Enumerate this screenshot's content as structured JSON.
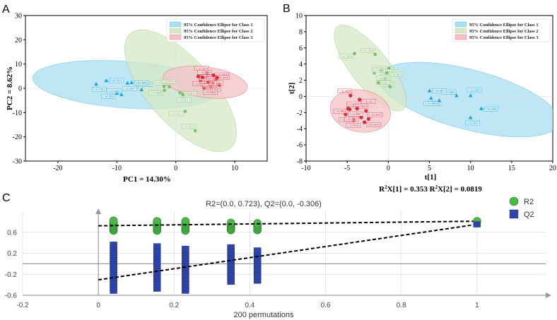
{
  "colors": {
    "class1": "#1aa3d6",
    "class1_fill": "#a8def2",
    "class2": "#7dbb67",
    "class2_fill": "#d6e8c6",
    "class3": "#d92a3a",
    "class3_fill": "#f6c2c7",
    "r2": "#4cb648",
    "q2": "#2f45a8"
  },
  "chart_data": [
    {
      "type": "scatter",
      "panel": "A",
      "xlabel": "PC1 = 14.30%",
      "ylabel": "PC2 = 8.62%",
      "xlim": [
        -25.5,
        15.5
      ],
      "ylim": [
        -30,
        30
      ],
      "xticks": [
        -20,
        -10,
        0,
        10
      ],
      "yticks": [
        -30,
        -20,
        -10,
        0,
        10,
        20,
        30
      ],
      "legend": [
        "95% Confidence Ellipse for Class 1",
        "95% Confidence Ellipse for Class 2",
        "95% Confidence Ellipse for Class 3"
      ],
      "ellipses": [
        {
          "cls": 1,
          "cx": -8.5,
          "cy": 1.5,
          "rx": 16,
          "ry": 9,
          "angle": -10
        },
        {
          "cls": 2,
          "cx": 0.8,
          "cy": -1,
          "rx": 25,
          "ry": 5.8,
          "angle": -70
        },
        {
          "cls": 3,
          "cx": 5,
          "cy": 2.5,
          "rx": 7.5,
          "ry": 5.2,
          "angle": -18
        }
      ],
      "points": [
        {
          "cls": 1,
          "x": -11.8,
          "y": 3.2,
          "label": "CACH01"
        },
        {
          "cls": 1,
          "x": -13.5,
          "y": 1.8,
          "label": "CACH02"
        },
        {
          "cls": 1,
          "x": -10,
          "y": -2,
          "label": "CACH03"
        },
        {
          "cls": 1,
          "x": -9.2,
          "y": -2.6,
          "label": "CACH04"
        },
        {
          "cls": 1,
          "x": -5.8,
          "y": -0.5,
          "label": "CACH05"
        },
        {
          "cls": 1,
          "x": -7.5,
          "y": 2.4,
          "label": "CACH06"
        },
        {
          "cls": 1,
          "x": -8.2,
          "y": 2.2,
          "label": "CACH07"
        },
        {
          "cls": 2,
          "x": -1.9,
          "y": -0.8,
          "label": "CACH08"
        },
        {
          "cls": 2,
          "x": -1.1,
          "y": 0.6,
          "label": "CACH09"
        },
        {
          "cls": 2,
          "x": -2,
          "y": 0.8,
          "label": "CACH10"
        },
        {
          "cls": 2,
          "x": 0.7,
          "y": -1.8,
          "label": "CACH11"
        },
        {
          "cls": 2,
          "x": 1.2,
          "y": -2.6,
          "label": "CACH12"
        },
        {
          "cls": 2,
          "x": 1.6,
          "y": -9.5,
          "label": "CACH13"
        },
        {
          "cls": 2,
          "x": 3.3,
          "y": -17.5,
          "label": "CACH14"
        },
        {
          "cls": 3,
          "x": 4.2,
          "y": 2.8,
          "label": "CACH15"
        },
        {
          "cls": 3,
          "x": 4.8,
          "y": 0.3,
          "label": "CACH16"
        },
        {
          "cls": 3,
          "x": 5.2,
          "y": 4.2,
          "label": "CACH17"
        },
        {
          "cls": 3,
          "x": 5.6,
          "y": 2.7,
          "label": "CACH18"
        },
        {
          "cls": 3,
          "x": 6.2,
          "y": 2.2,
          "label": "CACH19"
        },
        {
          "cls": 3,
          "x": 6.8,
          "y": 3.6,
          "label": "CACH20"
        },
        {
          "cls": 3,
          "x": 4.5,
          "y": 4.6,
          "label": "CACH21"
        },
        {
          "cls": 3,
          "x": 5.9,
          "y": 0.8,
          "label": "CACH22"
        },
        {
          "cls": 3,
          "x": 7.4,
          "y": 1.5,
          "label": "CACH23"
        },
        {
          "cls": 3,
          "x": 5.3,
          "y": 6.2,
          "label": "CACH24"
        },
        {
          "cls": 3,
          "x": 3.8,
          "y": 4.9,
          "label": "CACH25"
        },
        {
          "cls": 3,
          "x": 6.4,
          "y": 5.4,
          "label": "CACH26"
        },
        {
          "cls": 3,
          "x": 7,
          "y": 4.4,
          "label": "CACH27"
        }
      ]
    },
    {
      "type": "scatter",
      "panel": "B",
      "xlabel": "t[1]",
      "ylabel": "t[2]",
      "caption_r2x1": "0.353",
      "caption_r2x2": "0.0819",
      "xlim": [
        -10,
        20
      ],
      "ylim": [
        -8,
        10
      ],
      "xticks": [
        -10,
        -5,
        0,
        5,
        10,
        15,
        20
      ],
      "yticks": [
        -8,
        -6,
        -4,
        -2,
        0,
        2,
        4,
        6,
        8,
        10
      ],
      "legend": [
        "95% Confidence Ellipse for Class 1",
        "95% Confidence Ellipse for Class 2",
        "95% Confidence Ellipse for Class 3"
      ],
      "ellipses": [
        {
          "cls": 1,
          "cx": 9.8,
          "cy": -0.4,
          "rx": 11.3,
          "ry": 3.7,
          "angle": -15
        },
        {
          "cls": 2,
          "cx": -2.2,
          "cy": 3.5,
          "rx": 6.5,
          "ry": 2.3,
          "angle": -52
        },
        {
          "cls": 3,
          "cx": -3.4,
          "cy": -1.8,
          "rx": 3.7,
          "ry": 2.6,
          "angle": -10
        }
      ],
      "points": [
        {
          "cls": 1,
          "x": 5,
          "y": 0.7,
          "label": "CACH01"
        },
        {
          "cls": 1,
          "x": 5.2,
          "y": -0.2,
          "label": "CACH02"
        },
        {
          "cls": 1,
          "x": 6.2,
          "y": -0.5,
          "label": "CACH03"
        },
        {
          "cls": 1,
          "x": 8.3,
          "y": 0.1,
          "label": "CACH04"
        },
        {
          "cls": 1,
          "x": 10,
          "y": 0.1,
          "label": "CACH05"
        },
        {
          "cls": 1,
          "x": 11.3,
          "y": -1.5,
          "label": "CACH06"
        },
        {
          "cls": 1,
          "x": 10,
          "y": -2.6,
          "label": "CACH07"
        },
        {
          "cls": 2,
          "x": -4.1,
          "y": 5.3,
          "label": "CACH08"
        },
        {
          "cls": 2,
          "x": -1.6,
          "y": 5.2,
          "label": "CACH09"
        },
        {
          "cls": 2,
          "x": -1.7,
          "y": 2.9,
          "label": "CACH10"
        },
        {
          "cls": 2,
          "x": -0.9,
          "y": 3.2,
          "label": "CACH11"
        },
        {
          "cls": 2,
          "x": -0.4,
          "y": 2.2,
          "label": "CACH12"
        },
        {
          "cls": 2,
          "x": 0.1,
          "y": 3.5,
          "label": "CACH13"
        },
        {
          "cls": 2,
          "x": 0.2,
          "y": 1.2,
          "label": "CACH14"
        },
        {
          "cls": 2,
          "x": -1.2,
          "y": 1.7,
          "label": "CACH15"
        },
        {
          "cls": 2,
          "x": -0.2,
          "y": 2.9,
          "label": "CACH16"
        },
        {
          "cls": 3,
          "x": -5.2,
          "y": -2.2,
          "label": "CACH17"
        },
        {
          "cls": 3,
          "x": -4.7,
          "y": -1.6,
          "label": "CACH18"
        },
        {
          "cls": 3,
          "x": -4.6,
          "y": 0.1,
          "label": "CACH19"
        },
        {
          "cls": 3,
          "x": -4.9,
          "y": -1.5,
          "label": "CACH20"
        },
        {
          "cls": 3,
          "x": -3.5,
          "y": -0.4,
          "label": "CACH21"
        },
        {
          "cls": 3,
          "x": -4.2,
          "y": -2.9,
          "label": "CACH22"
        },
        {
          "cls": 3,
          "x": -3.3,
          "y": -2.6,
          "label": "CACH23"
        },
        {
          "cls": 3,
          "x": -2.7,
          "y": -1.8,
          "label": "CACH24"
        },
        {
          "cls": 3,
          "x": -2.4,
          "y": -2.8,
          "label": "CACH25"
        },
        {
          "cls": 3,
          "x": -2.9,
          "y": -3.2,
          "label": "CACH26"
        },
        {
          "cls": 3,
          "x": -3.8,
          "y": -1.5,
          "label": "CACH27"
        }
      ]
    },
    {
      "type": "scatter",
      "panel": "C",
      "title": "R2=(0.0, 0.723), Q2=(0.0, -0.306)",
      "xlabel": "200 permutations",
      "xlim": [
        -0.2,
        1.2
      ],
      "ylim": [
        -0.6,
        1.0
      ],
      "xticks": [
        -0.2,
        0,
        0.2,
        0.4,
        0.6,
        0.8,
        1
      ],
      "yticks": [
        -0.6,
        -0.2,
        0.2,
        0.6
      ],
      "legend": [
        "R2",
        "Q2"
      ],
      "r2_line": [
        [
          0,
          0.723
        ],
        [
          1,
          0.81
        ]
      ],
      "q2_line": [
        [
          0,
          -0.306
        ],
        [
          1,
          0.75
        ]
      ],
      "r2_clusters": [
        {
          "x": 0.04,
          "ymin": 0.63,
          "ymax": 0.82
        },
        {
          "x": 0.155,
          "ymin": 0.63,
          "ymax": 0.81
        },
        {
          "x": 0.23,
          "ymin": 0.63,
          "ymax": 0.81
        },
        {
          "x": 0.35,
          "ymin": 0.64,
          "ymax": 0.78
        },
        {
          "x": 0.42,
          "ymin": 0.64,
          "ymax": 0.77
        }
      ],
      "q2_clusters": [
        {
          "x": 0.04,
          "ymin": -0.52,
          "ymax": 0.37
        },
        {
          "x": 0.155,
          "ymin": -0.48,
          "ymax": 0.34
        },
        {
          "x": 0.23,
          "ymin": -0.52,
          "ymax": 0.29
        },
        {
          "x": 0.35,
          "ymin": -0.35,
          "ymax": 0.32
        },
        {
          "x": 0.42,
          "ymin": -0.33,
          "ymax": 0.26
        }
      ],
      "r2_final": {
        "x": 1,
        "y": 0.81
      },
      "q2_final": {
        "x": 1,
        "y": 0.75
      }
    }
  ]
}
